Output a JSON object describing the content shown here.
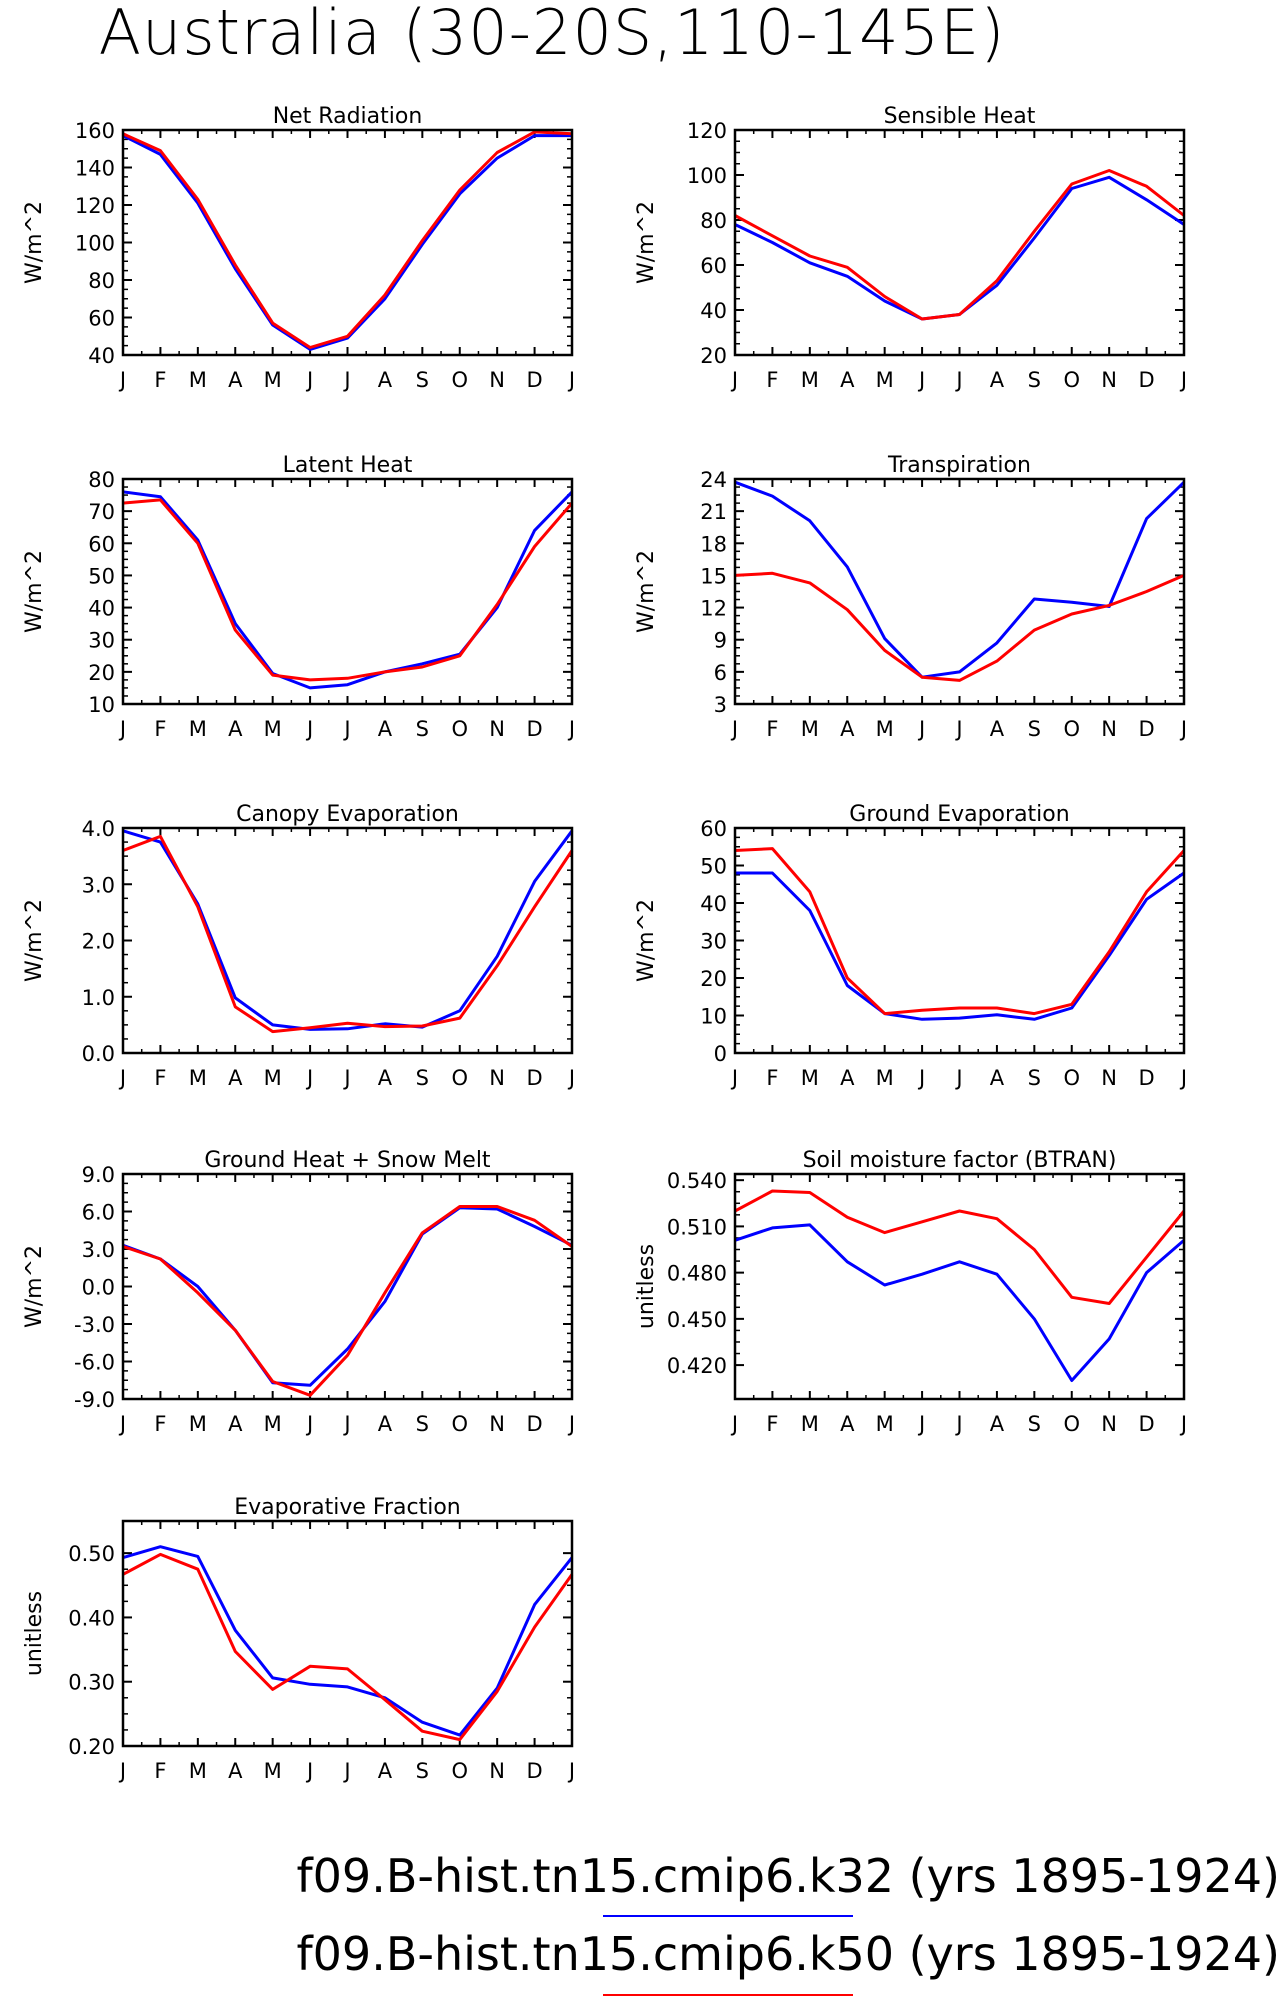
{
  "figure_title": "Australia (30-20S,110-145E)",
  "legend": [
    {
      "label": "f09.B-hist.tn15.cmip6.k32 (yrs 1895-1924)",
      "color": "#0000ff"
    },
    {
      "label": "f09.B-hist.tn15.cmip6.k50 (yrs 1895-1924)",
      "color": "#ff0000"
    }
  ],
  "months": [
    "J",
    "F",
    "M",
    "A",
    "M",
    "J",
    "J",
    "A",
    "S",
    "O",
    "N",
    "D",
    "J"
  ],
  "chart_data": [
    {
      "type": "line",
      "title": "Net Radiation",
      "ylabel": "W/m^2",
      "categories": [
        "J",
        "F",
        "M",
        "A",
        "M",
        "J",
        "J",
        "A",
        "S",
        "O",
        "N",
        "D",
        "J"
      ],
      "ylim": [
        40,
        160
      ],
      "yticks": [
        40,
        60,
        80,
        100,
        120,
        140,
        160
      ],
      "ytick_labels": [
        "40",
        "60",
        "80",
        "100",
        "120",
        "140",
        "160"
      ],
      "series": [
        {
          "color": "#0000ff",
          "values": [
            157,
            147,
            121,
            86,
            56,
            43,
            49,
            70,
            99,
            126,
            145,
            157,
            157
          ]
        },
        {
          "color": "#ff0000",
          "values": [
            158,
            149,
            123,
            88,
            57,
            44,
            50,
            72,
            101,
            128,
            148,
            159,
            158
          ]
        }
      ]
    },
    {
      "type": "line",
      "title": "Sensible Heat",
      "ylabel": "W/m^2",
      "categories": [
        "J",
        "F",
        "M",
        "A",
        "M",
        "J",
        "J",
        "A",
        "S",
        "O",
        "N",
        "D",
        "J"
      ],
      "ylim": [
        20,
        120
      ],
      "yticks": [
        20,
        40,
        60,
        80,
        100,
        120
      ],
      "ytick_labels": [
        "20",
        "40",
        "60",
        "80",
        "100",
        "120"
      ],
      "series": [
        {
          "color": "#0000ff",
          "values": [
            78,
            70,
            61,
            55,
            44,
            36,
            38,
            51,
            72,
            94,
            99,
            89,
            78
          ]
        },
        {
          "color": "#ff0000",
          "values": [
            82,
            73,
            64,
            59,
            46,
            36,
            38,
            53,
            75,
            96,
            102,
            95,
            82
          ]
        }
      ]
    },
    {
      "type": "line",
      "title": "Latent Heat",
      "ylabel": "W/m^2",
      "categories": [
        "J",
        "F",
        "M",
        "A",
        "M",
        "J",
        "J",
        "A",
        "S",
        "O",
        "N",
        "D",
        "J"
      ],
      "ylim": [
        10,
        80
      ],
      "yticks": [
        10,
        20,
        30,
        40,
        50,
        60,
        70,
        80
      ],
      "ytick_labels": [
        "10",
        "20",
        "30",
        "40",
        "50",
        "60",
        "70",
        "80"
      ],
      "series": [
        {
          "color": "#0000ff",
          "values": [
            76,
            74.5,
            61,
            35,
            19.5,
            15,
            16,
            20,
            22.5,
            25.5,
            40,
            64,
            76
          ]
        },
        {
          "color": "#ff0000",
          "values": [
            72.5,
            73.5,
            60,
            33,
            19,
            17.5,
            18,
            20,
            21.5,
            25,
            41,
            59,
            72.5
          ]
        }
      ]
    },
    {
      "type": "line",
      "title": "Transpiration",
      "ylabel": "W/m^2",
      "categories": [
        "J",
        "F",
        "M",
        "A",
        "M",
        "J",
        "J",
        "A",
        "S",
        "O",
        "N",
        "D",
        "J"
      ],
      "ylim": [
        3,
        24
      ],
      "yticks": [
        3,
        6,
        9,
        12,
        15,
        18,
        21,
        24
      ],
      "ytick_labels": [
        "3",
        "6",
        "9",
        "12",
        "15",
        "18",
        "21",
        "24"
      ],
      "series": [
        {
          "color": "#0000ff",
          "values": [
            23.7,
            22.4,
            20.1,
            15.8,
            9.1,
            5.5,
            6.0,
            8.7,
            12.8,
            12.5,
            12.1,
            20.3,
            23.7
          ]
        },
        {
          "color": "#ff0000",
          "values": [
            15.0,
            15.2,
            14.3,
            11.8,
            8.0,
            5.5,
            5.2,
            7.0,
            9.9,
            11.4,
            12.2,
            13.5,
            15.0
          ]
        }
      ]
    },
    {
      "type": "line",
      "title": "Canopy Evaporation",
      "ylabel": "W/m^2",
      "categories": [
        "J",
        "F",
        "M",
        "A",
        "M",
        "J",
        "J",
        "A",
        "S",
        "O",
        "N",
        "D",
        "J"
      ],
      "ylim": [
        0,
        4
      ],
      "yticks": [
        0,
        1,
        2,
        3,
        4
      ],
      "ytick_labels": [
        "0.0",
        "1.0",
        "2.0",
        "3.0",
        "4.0"
      ],
      "series": [
        {
          "color": "#0000ff",
          "values": [
            3.95,
            3.75,
            2.65,
            0.98,
            0.5,
            0.42,
            0.43,
            0.52,
            0.46,
            0.75,
            1.72,
            3.05,
            3.95
          ]
        },
        {
          "color": "#ff0000",
          "values": [
            3.6,
            3.85,
            2.6,
            0.82,
            0.38,
            0.45,
            0.53,
            0.47,
            0.48,
            0.62,
            1.55,
            2.6,
            3.6
          ]
        }
      ]
    },
    {
      "type": "line",
      "title": "Ground Evaporation",
      "ylabel": "W/m^2",
      "categories": [
        "J",
        "F",
        "M",
        "A",
        "M",
        "J",
        "J",
        "A",
        "S",
        "O",
        "N",
        "D",
        "J"
      ],
      "ylim": [
        0,
        60
      ],
      "yticks": [
        0,
        10,
        20,
        30,
        40,
        50,
        60
      ],
      "ytick_labels": [
        "0",
        "10",
        "20",
        "30",
        "40",
        "50",
        "60"
      ],
      "series": [
        {
          "color": "#0000ff",
          "values": [
            48,
            48,
            38,
            18,
            10.5,
            9,
            9.3,
            10.2,
            9,
            12,
            26,
            41,
            48
          ]
        },
        {
          "color": "#ff0000",
          "values": [
            54,
            54.5,
            43,
            20,
            10.5,
            11.4,
            12,
            12,
            10.5,
            13,
            27,
            43,
            54
          ]
        }
      ]
    },
    {
      "type": "line",
      "title": "Ground Heat + Snow Melt",
      "ylabel": "W/m^2",
      "categories": [
        "J",
        "F",
        "M",
        "A",
        "M",
        "J",
        "J",
        "A",
        "S",
        "O",
        "N",
        "D",
        "J"
      ],
      "ylim": [
        -9,
        9
      ],
      "yticks": [
        -9,
        -6,
        -3,
        0,
        3,
        6,
        9
      ],
      "ytick_labels": [
        "-9.0",
        "-6.0",
        "-3.0",
        "0.0",
        "3.0",
        "6.0",
        "9.0"
      ],
      "series": [
        {
          "color": "#0000ff",
          "values": [
            3.3,
            2.2,
            0,
            -3.5,
            -7.7,
            -7.9,
            -5,
            -1.2,
            4.2,
            6.3,
            6.2,
            4.8,
            3.3
          ]
        },
        {
          "color": "#ff0000",
          "values": [
            3.2,
            2.2,
            -0.5,
            -3.5,
            -7.6,
            -8.7,
            -5.5,
            -0.5,
            4.3,
            6.4,
            6.4,
            5.3,
            3.2
          ]
        }
      ]
    },
    {
      "type": "line",
      "title": "Soil moisture factor (BTRAN)",
      "ylabel": "unitless",
      "categories": [
        "J",
        "F",
        "M",
        "A",
        "M",
        "J",
        "J",
        "A",
        "S",
        "O",
        "N",
        "D",
        "J"
      ],
      "ylim": [
        0.398,
        0.544
      ],
      "yticks": [
        0.42,
        0.45,
        0.48,
        0.51,
        0.54
      ],
      "ytick_labels": [
        "0.420",
        "0.450",
        "0.480",
        "0.510",
        "0.540"
      ],
      "series": [
        {
          "color": "#0000ff",
          "values": [
            0.501,
            0.509,
            0.511,
            0.487,
            0.472,
            0.479,
            0.487,
            0.479,
            0.45,
            0.41,
            0.437,
            0.48,
            0.501
          ]
        },
        {
          "color": "#ff0000",
          "values": [
            0.52,
            0.533,
            0.532,
            0.516,
            0.506,
            0.513,
            0.52,
            0.515,
            0.495,
            0.464,
            0.46,
            0.49,
            0.52
          ]
        }
      ]
    },
    {
      "type": "line",
      "title": "Evaporative Fraction",
      "ylabel": "unitless",
      "categories": [
        "J",
        "F",
        "M",
        "A",
        "M",
        "J",
        "J",
        "A",
        "S",
        "O",
        "N",
        "D",
        "J"
      ],
      "ylim": [
        0.2,
        0.55
      ],
      "yticks": [
        0.2,
        0.3,
        0.4,
        0.5
      ],
      "ytick_labels": [
        "0.20",
        "0.30",
        "0.40",
        "0.50"
      ],
      "series": [
        {
          "color": "#0000ff",
          "values": [
            0.493,
            0.51,
            0.495,
            0.38,
            0.306,
            0.296,
            0.292,
            0.275,
            0.237,
            0.217,
            0.29,
            0.42,
            0.493
          ]
        },
        {
          "color": "#ff0000",
          "values": [
            0.467,
            0.498,
            0.475,
            0.347,
            0.288,
            0.324,
            0.32,
            0.272,
            0.223,
            0.21,
            0.285,
            0.385,
            0.467
          ]
        }
      ]
    }
  ]
}
